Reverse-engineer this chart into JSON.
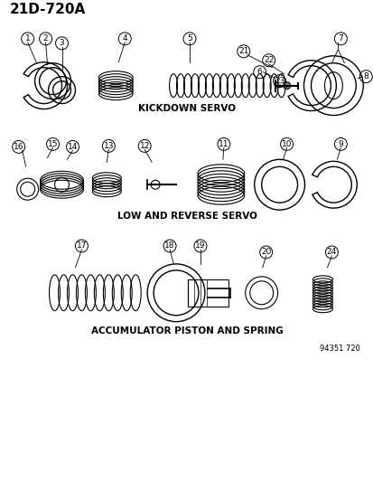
{
  "title_code": "21D-720A",
  "section1_label": "KICKDOWN SERVO",
  "section2_label": "LOW AND REVERSE SERVO",
  "section3_label": "ACCUMULATOR PISTON AND SPRING",
  "part_number": "94351 720",
  "bg_color": "#ffffff",
  "line_color": "#000000",
  "font_family": "monospace",
  "title_fontsize": 11,
  "label_fontsize": 7.5,
  "part_label_fontsize": 6.5
}
